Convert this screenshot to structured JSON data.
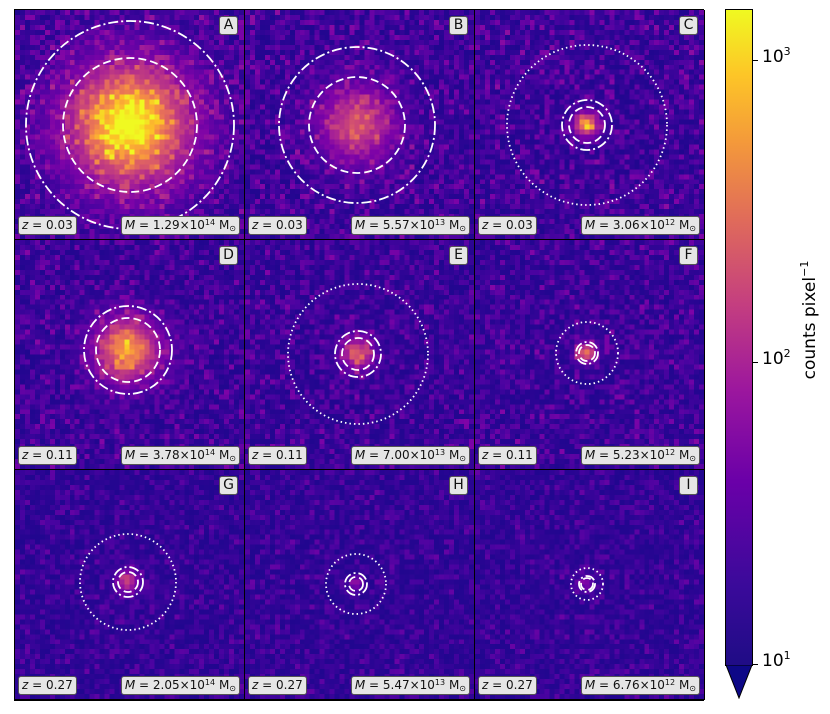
{
  "panels": [
    {
      "letter": "A",
      "z_label": "z",
      "z_value": "= 0.03",
      "m_label": "M",
      "m_value": "= 1.29×10",
      "m_exp": "14",
      "m_unit": "M",
      "m_sub": "⊙"
    },
    {
      "letter": "B",
      "z_label": "z",
      "z_value": "= 0.03",
      "m_label": "M",
      "m_value": "= 5.57×10",
      "m_exp": "13",
      "m_unit": "M",
      "m_sub": "⊙"
    },
    {
      "letter": "C",
      "z_label": "z",
      "z_value": "= 0.03",
      "m_label": "M",
      "m_value": "= 3.06×10",
      "m_exp": "12",
      "m_unit": "M",
      "m_sub": "⊙"
    },
    {
      "letter": "D",
      "z_label": "z",
      "z_value": "= 0.11",
      "m_label": "M",
      "m_value": "= 3.78×10",
      "m_exp": "14",
      "m_unit": "M",
      "m_sub": "⊙"
    },
    {
      "letter": "E",
      "z_label": "z",
      "z_value": "= 0.11",
      "m_label": "M",
      "m_value": "= 7.00×10",
      "m_exp": "13",
      "m_unit": "M",
      "m_sub": "⊙"
    },
    {
      "letter": "F",
      "z_label": "z",
      "z_value": "= 0.11",
      "m_label": "M",
      "m_value": "= 5.23×10",
      "m_exp": "12",
      "m_unit": "M",
      "m_sub": "⊙"
    },
    {
      "letter": "G",
      "z_label": "z",
      "z_value": "= 0.27",
      "m_label": "M",
      "m_value": "= 2.05×10",
      "m_exp": "14",
      "m_unit": "M",
      "m_sub": "⊙"
    },
    {
      "letter": "H",
      "z_label": "z",
      "z_value": "= 0.27",
      "m_label": "M",
      "m_value": "= 5.47×10",
      "m_exp": "13",
      "m_unit": "M",
      "m_sub": "⊙"
    },
    {
      "letter": "I",
      "z_label": "z",
      "z_value": "= 0.27",
      "m_label": "M",
      "m_value": "= 6.76×10",
      "m_exp": "12",
      "m_unit": "M",
      "m_sub": "⊙"
    }
  ],
  "colorbar": {
    "title": "counts pixel",
    "title_exp": "−1",
    "colormap": "plasma",
    "ticks": [
      {
        "base": "10",
        "exp": "3"
      },
      {
        "base": "10",
        "exp": "2"
      },
      {
        "base": "10",
        "exp": "1"
      }
    ]
  }
}
